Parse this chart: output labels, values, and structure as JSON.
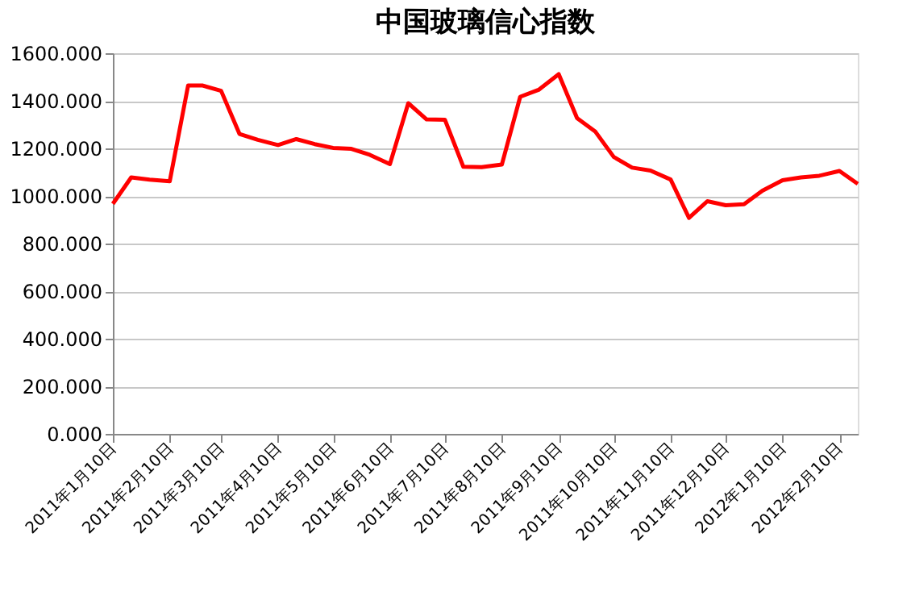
{
  "chart_data": {
    "type": "line",
    "title": "中国玻璃信心指数",
    "x": [
      "2011-01-10",
      "2011-01-20",
      "2011-01-30",
      "2011-02-10",
      "2011-02-20",
      "2011-02-28",
      "2011-03-10",
      "2011-03-20",
      "2011-03-30",
      "2011-04-10",
      "2011-04-20",
      "2011-04-30",
      "2011-05-10",
      "2011-05-20",
      "2011-05-30",
      "2011-06-10",
      "2011-06-20",
      "2011-06-30",
      "2011-07-10",
      "2011-07-20",
      "2011-07-30",
      "2011-08-10",
      "2011-08-20",
      "2011-08-30",
      "2011-09-10",
      "2011-09-20",
      "2011-09-30",
      "2011-10-10",
      "2011-10-20",
      "2011-10-30",
      "2011-11-10",
      "2011-11-20",
      "2011-11-30",
      "2011-12-10",
      "2011-12-20",
      "2011-12-30",
      "2012-01-10",
      "2012-01-20",
      "2012-01-30",
      "2012-02-10",
      "2012-02-20"
    ],
    "series": [
      {
        "color": "#ff0000",
        "values": [
          967,
          1078,
          1069,
          1062,
          1464,
          1464,
          1442,
          1261,
          1236,
          1214,
          1239,
          1218,
          1202,
          1198,
          1173,
          1134,
          1390,
          1322,
          1320,
          1123,
          1121,
          1132,
          1417,
          1446,
          1512,
          1327,
          1270,
          1164,
          1119,
          1107,
          1069,
          908,
          978,
          961,
          965,
          1022,
          1066,
          1078,
          1085,
          1105,
          1051
        ]
      }
    ],
    "xlim": [
      "2011-01-10",
      "2012-02-20"
    ],
    "xticks": [
      {
        "value": "2011-01-10",
        "label": "2011年1月10日"
      },
      {
        "value": "2011-02-10",
        "label": "2011年2月10日"
      },
      {
        "value": "2011-03-10",
        "label": "2011年3月10日"
      },
      {
        "value": "2011-04-10",
        "label": "2011年4月10日"
      },
      {
        "value": "2011-05-10",
        "label": "2011年5月10日"
      },
      {
        "value": "2011-06-10",
        "label": "2011年6月10日"
      },
      {
        "value": "2011-07-10",
        "label": "2011年7月10日"
      },
      {
        "value": "2011-08-10",
        "label": "2011年8月10日"
      },
      {
        "value": "2011-09-10",
        "label": "2011年9月10日"
      },
      {
        "value": "2011-10-10",
        "label": "2011年10月10日"
      },
      {
        "value": "2011-11-10",
        "label": "2011年11月10日"
      },
      {
        "value": "2011-12-10",
        "label": "2011年12月10日"
      },
      {
        "value": "2012-01-10",
        "label": "2012年1月10日"
      },
      {
        "value": "2012-02-10",
        "label": "2012年2月10日"
      }
    ],
    "ylim": [
      0,
      1600
    ],
    "yticks": [
      {
        "value": 0,
        "label": "0.000"
      },
      {
        "value": 200,
        "label": "200.000"
      },
      {
        "value": 400,
        "label": "400.000"
      },
      {
        "value": 600,
        "label": "600.000"
      },
      {
        "value": 800,
        "label": "800.000"
      },
      {
        "value": 1000,
        "label": "1000.000"
      },
      {
        "value": 1200,
        "label": "1200.000"
      },
      {
        "value": 1400,
        "label": "1400.000"
      },
      {
        "value": 1600,
        "label": "1600.000"
      }
    ],
    "grid": "y",
    "marker": "none",
    "line_style": "solid"
  }
}
